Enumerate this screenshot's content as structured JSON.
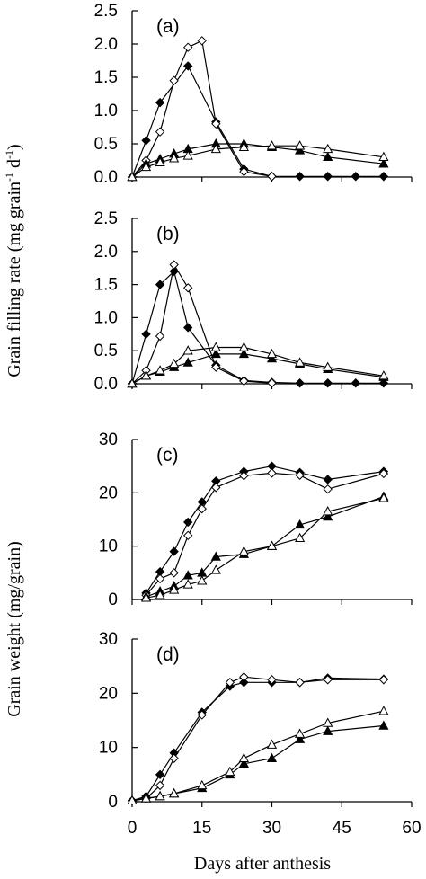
{
  "figure": {
    "y_label_rate": {
      "main": "Grain filling rate (mg grain",
      "sup1": "-1",
      "mid": " d",
      "sup2": "-1",
      "end": ")"
    },
    "y_label_weight": "Grain weight (mg/grain)",
    "x_label": "Days after anthesis",
    "marker_colors": {
      "filled": "#000000",
      "open": "#ffffff",
      "line": "#000000"
    }
  },
  "chart_data": [
    {
      "type": "line",
      "label": "(a)",
      "x": [
        0,
        3,
        6,
        9,
        12,
        15,
        18,
        21,
        24,
        30,
        36,
        42,
        48,
        54
      ],
      "xlim": [
        0,
        60
      ],
      "ylim": [
        0,
        2.5
      ],
      "yticks": [
        "0.0",
        "0.5",
        "1.0",
        "1.5",
        "2.0",
        "2.5"
      ],
      "xticks": [
        "0",
        "15",
        "30",
        "45",
        "60"
      ],
      "show_xticks": false,
      "series": [
        {
          "marker": "filled-diamond",
          "x": [
            0,
            3,
            6,
            12,
            18,
            24,
            30,
            36,
            42,
            48,
            54
          ],
          "values": [
            0.0,
            0.55,
            1.12,
            1.67,
            0.83,
            0.12,
            0.01,
            0.01,
            0.01,
            0.01,
            0.01
          ]
        },
        {
          "marker": "open-diamond",
          "x": [
            0,
            3,
            6,
            9,
            12,
            15,
            18,
            24,
            30
          ],
          "values": [
            0.0,
            0.25,
            0.68,
            1.45,
            1.95,
            2.05,
            0.8,
            0.08,
            0.01
          ]
        },
        {
          "marker": "filled-triangle",
          "x": [
            0,
            3,
            6,
            9,
            12,
            18,
            24,
            30,
            36,
            42,
            54
          ],
          "values": [
            0.0,
            0.2,
            0.27,
            0.35,
            0.42,
            0.5,
            0.5,
            0.45,
            0.4,
            0.3,
            0.2
          ]
        },
        {
          "marker": "open-triangle",
          "x": [
            0,
            3,
            6,
            9,
            12,
            18,
            24,
            30,
            36,
            42,
            54
          ],
          "values": [
            0.0,
            0.15,
            0.22,
            0.28,
            0.32,
            0.42,
            0.45,
            0.47,
            0.47,
            0.42,
            0.3
          ]
        }
      ]
    },
    {
      "type": "line",
      "label": "(b)",
      "xlim": [
        0,
        60
      ],
      "ylim": [
        0,
        2.5
      ],
      "yticks": [
        "0.0",
        "0.5",
        "1.0",
        "1.5",
        "2.0",
        "2.5"
      ],
      "xticks": [
        "0",
        "15",
        "30",
        "45",
        "60"
      ],
      "show_xticks": false,
      "series": [
        {
          "marker": "filled-diamond",
          "x": [
            0,
            3,
            6,
            9,
            12,
            18,
            24,
            30,
            36,
            42,
            48,
            54
          ],
          "values": [
            0.0,
            0.75,
            1.5,
            1.7,
            0.85,
            0.28,
            0.05,
            0.02,
            0.01,
            0.01,
            0.01,
            0.01
          ]
        },
        {
          "marker": "open-diamond",
          "x": [
            0,
            3,
            6,
            9,
            12,
            18,
            24,
            30
          ],
          "values": [
            0.0,
            0.2,
            0.72,
            1.8,
            1.45,
            0.25,
            0.04,
            0.01
          ]
        },
        {
          "marker": "filled-triangle",
          "x": [
            0,
            3,
            6,
            9,
            12,
            18,
            24,
            30,
            36,
            42,
            54
          ],
          "values": [
            0.0,
            0.12,
            0.18,
            0.25,
            0.32,
            0.45,
            0.45,
            0.38,
            0.3,
            0.22,
            0.1
          ]
        },
        {
          "marker": "open-triangle",
          "x": [
            0,
            3,
            6,
            9,
            12,
            18,
            24,
            30,
            36,
            42,
            54
          ],
          "values": [
            0.0,
            0.12,
            0.2,
            0.3,
            0.5,
            0.55,
            0.55,
            0.45,
            0.32,
            0.25,
            0.12
          ]
        }
      ]
    },
    {
      "type": "line",
      "label": "(c)",
      "xlim": [
        0,
        60
      ],
      "ylim": [
        0,
        30
      ],
      "yticks": [
        "0",
        "10",
        "20",
        "30"
      ],
      "xticks": [
        "0",
        "15",
        "30",
        "45",
        "60"
      ],
      "show_xticks": false,
      "series": [
        {
          "marker": "filled-diamond",
          "x": [
            3,
            6,
            9,
            12,
            15,
            18,
            24,
            30,
            36,
            42,
            54
          ],
          "values": [
            1.2,
            5.2,
            9.0,
            14.5,
            18.3,
            22.2,
            24.0,
            25.0,
            23.8,
            22.5,
            24.0
          ]
        },
        {
          "marker": "open-diamond",
          "x": [
            3,
            6,
            9,
            12,
            15,
            18,
            24,
            30,
            36,
            42,
            54
          ],
          "values": [
            0.8,
            3.9,
            5.0,
            12.0,
            17.0,
            21.0,
            23.2,
            23.7,
            23.3,
            20.7,
            23.6
          ]
        },
        {
          "marker": "filled-triangle",
          "x": [
            3,
            6,
            9,
            12,
            15,
            18,
            24,
            30,
            36,
            42,
            54
          ],
          "values": [
            0.5,
            1.5,
            2.5,
            4.5,
            5.0,
            8.0,
            8.5,
            10.0,
            14.0,
            15.5,
            19.3
          ]
        },
        {
          "marker": "open-triangle",
          "x": [
            3,
            6,
            9,
            12,
            15,
            18,
            24,
            30,
            36,
            42,
            54
          ],
          "values": [
            0.3,
            0.8,
            1.8,
            2.8,
            3.5,
            5.5,
            9.0,
            10.0,
            11.5,
            16.5,
            19.0
          ]
        }
      ]
    },
    {
      "type": "line",
      "label": "(d)",
      "xlim": [
        0,
        60
      ],
      "ylim": [
        0,
        30
      ],
      "yticks": [
        "0",
        "10",
        "20",
        "30"
      ],
      "xticks": [
        "0",
        "15",
        "30",
        "45",
        "60"
      ],
      "show_xticks": true,
      "series": [
        {
          "marker": "filled-diamond",
          "x": [
            0,
            3,
            6,
            9,
            15,
            21,
            24,
            30,
            36,
            42,
            54
          ],
          "values": [
            0.2,
            1.0,
            5.0,
            9.0,
            16.5,
            21.3,
            22.0,
            22.0,
            22.0,
            22.8,
            22.6
          ]
        },
        {
          "marker": "open-diamond",
          "x": [
            0,
            3,
            6,
            9,
            15,
            21,
            24,
            30,
            36,
            42,
            54
          ],
          "values": [
            0.2,
            0.6,
            3.0,
            8.0,
            16.0,
            22.0,
            23.0,
            22.5,
            22.0,
            22.5,
            22.5
          ]
        },
        {
          "marker": "filled-triangle",
          "x": [
            0,
            3,
            6,
            9,
            15,
            21,
            24,
            30,
            36,
            42,
            54
          ],
          "values": [
            0.2,
            0.6,
            1.0,
            1.5,
            2.5,
            5.0,
            7.0,
            8.0,
            11.5,
            13.0,
            14.0
          ]
        },
        {
          "marker": "open-triangle",
          "x": [
            0,
            3,
            6,
            9,
            15,
            21,
            24,
            30,
            36,
            42,
            54
          ],
          "values": [
            0.2,
            0.6,
            1.0,
            1.5,
            3.0,
            5.5,
            8.0,
            10.5,
            12.5,
            14.5,
            16.7
          ]
        }
      ]
    }
  ]
}
